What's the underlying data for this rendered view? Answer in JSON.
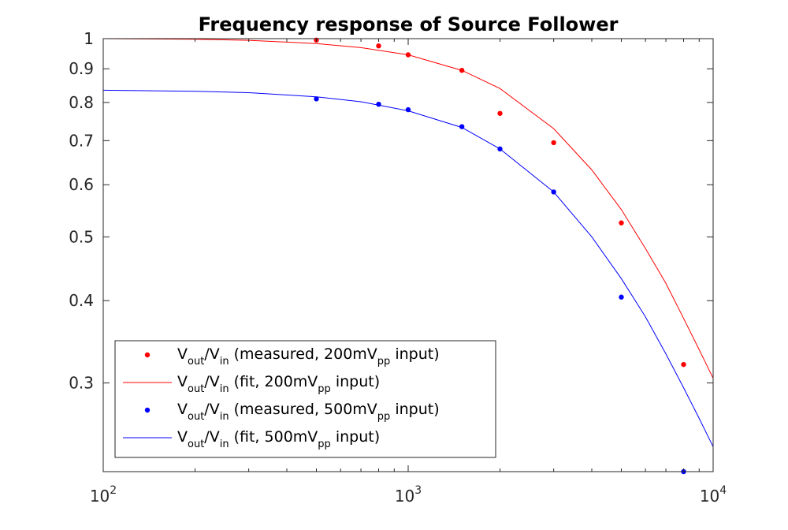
{
  "chart_data": {
    "type": "scatter",
    "title": "Frequency response of Source Follower",
    "xlabel": "",
    "ylabel": "",
    "xscale": "log",
    "yscale": "log",
    "xlim": [
      100,
      10000
    ],
    "ylim": [
      0.22,
      1.0
    ],
    "grid": false,
    "legend_position": "bottom-left",
    "x_ticks": [
      {
        "base": "10",
        "exp": "2",
        "value": 100
      },
      {
        "base": "10",
        "exp": "3",
        "value": 1000
      },
      {
        "base": "10",
        "exp": "4",
        "value": 10000
      }
    ],
    "y_ticks": [
      {
        "label": "0.3",
        "value": 0.3
      },
      {
        "label": "0.4",
        "value": 0.4
      },
      {
        "label": "0.5",
        "value": 0.5
      },
      {
        "label": "0.6",
        "value": 0.6
      },
      {
        "label": "0.7",
        "value": 0.7
      },
      {
        "label": "0.8",
        "value": 0.8
      },
      {
        "label": "0.9",
        "value": 0.9
      },
      {
        "label": "1",
        "value": 1.0
      }
    ],
    "series": [
      {
        "kind": "points",
        "color": "#ff0000",
        "legend": {
          "v1": "V",
          "s1": "out",
          "v2": "/V",
          "s2": "in",
          "t1": " (measured, 200mV",
          "s3": "pp",
          "t2": " input)"
        },
        "x": [
          500,
          800,
          1000,
          1500,
          2000,
          3000,
          5000,
          8000
        ],
        "y": [
          0.995,
          0.975,
          0.945,
          0.895,
          0.77,
          0.695,
          0.525,
          0.32
        ]
      },
      {
        "kind": "line",
        "color": "#ff0000",
        "legend": {
          "v1": "V",
          "s1": "out",
          "v2": "/V",
          "s2": "in",
          "t1": " (fit, 200mV",
          "s3": "pp",
          "t2": " input)"
        },
        "x": [
          100,
          200,
          300,
          500,
          700,
          1000,
          1500,
          2000,
          3000,
          4000,
          5000,
          6000,
          7000,
          8000,
          9000,
          10000
        ],
        "y": [
          1.0,
          0.998,
          0.994,
          0.983,
          0.969,
          0.945,
          0.895,
          0.84,
          0.73,
          0.632,
          0.55,
          0.48,
          0.425,
          0.376,
          0.337,
          0.305
        ]
      },
      {
        "kind": "points",
        "color": "#0000ff",
        "legend": {
          "v1": "V",
          "s1": "out",
          "v2": "/V",
          "s2": "in",
          "t1": " (measured, 500mV",
          "s3": "pp",
          "t2": " input)"
        },
        "x": [
          500,
          800,
          1000,
          1500,
          2000,
          3000,
          5000,
          8000
        ],
        "y": [
          0.81,
          0.795,
          0.78,
          0.735,
          0.68,
          0.585,
          0.405,
          0.22
        ]
      },
      {
        "kind": "line",
        "color": "#0000ff",
        "legend": {
          "v1": "V",
          "s1": "out",
          "v2": "/V",
          "s2": "in",
          "t1": " (fit, 500mV",
          "s3": "pp",
          "t2": " input)"
        },
        "x": [
          100,
          200,
          300,
          500,
          700,
          1000,
          1500,
          2000,
          3000,
          4000,
          5000,
          6000,
          7000,
          8000,
          9000,
          10000
        ],
        "y": [
          0.835,
          0.832,
          0.828,
          0.816,
          0.802,
          0.777,
          0.733,
          0.68,
          0.585,
          0.5,
          0.432,
          0.378,
          0.332,
          0.295,
          0.265,
          0.24
        ]
      }
    ]
  }
}
